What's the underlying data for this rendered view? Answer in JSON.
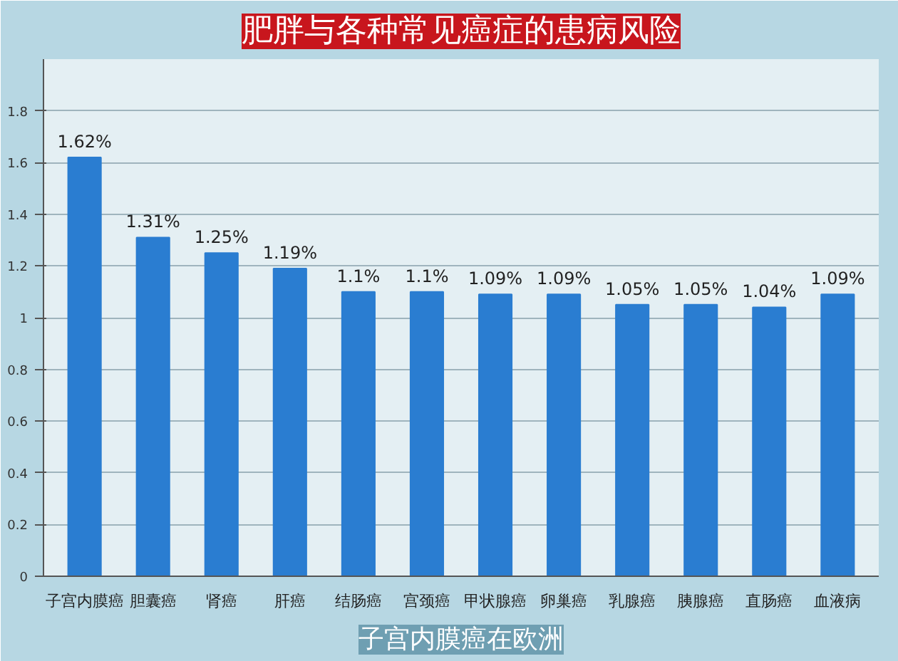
{
  "chart_data": {
    "type": "bar",
    "title": "肥胖与各种常见癌症的患病风险",
    "categories": [
      "子宫内膜癌",
      "胆囊癌",
      "肾癌",
      "肝癌",
      "结肠癌",
      "宫颈癌",
      "甲状腺癌",
      "卵巢癌",
      "乳腺癌",
      "胰腺癌",
      "直肠癌",
      "血液病"
    ],
    "values": [
      1.62,
      1.31,
      1.25,
      1.19,
      1.1,
      1.1,
      1.09,
      1.09,
      1.05,
      1.05,
      1.04,
      1.09
    ],
    "value_labels": [
      "1.62%",
      "1.31%",
      "1.25%",
      "1.19%",
      "1.1%",
      "1.1%",
      "1.09%",
      "1.09%",
      "1.05%",
      "1.05%",
      "1.04%",
      "1.09%"
    ],
    "color": "#2a7dd1",
    "ylim": [
      0,
      2.0
    ],
    "yticks": [
      0,
      0.2,
      0.4,
      0.6,
      0.8,
      1,
      1.2,
      1.4,
      1.6,
      1.8
    ],
    "grid": "y",
    "annotations": [
      "子宫内膜癌在欧洲"
    ]
  }
}
